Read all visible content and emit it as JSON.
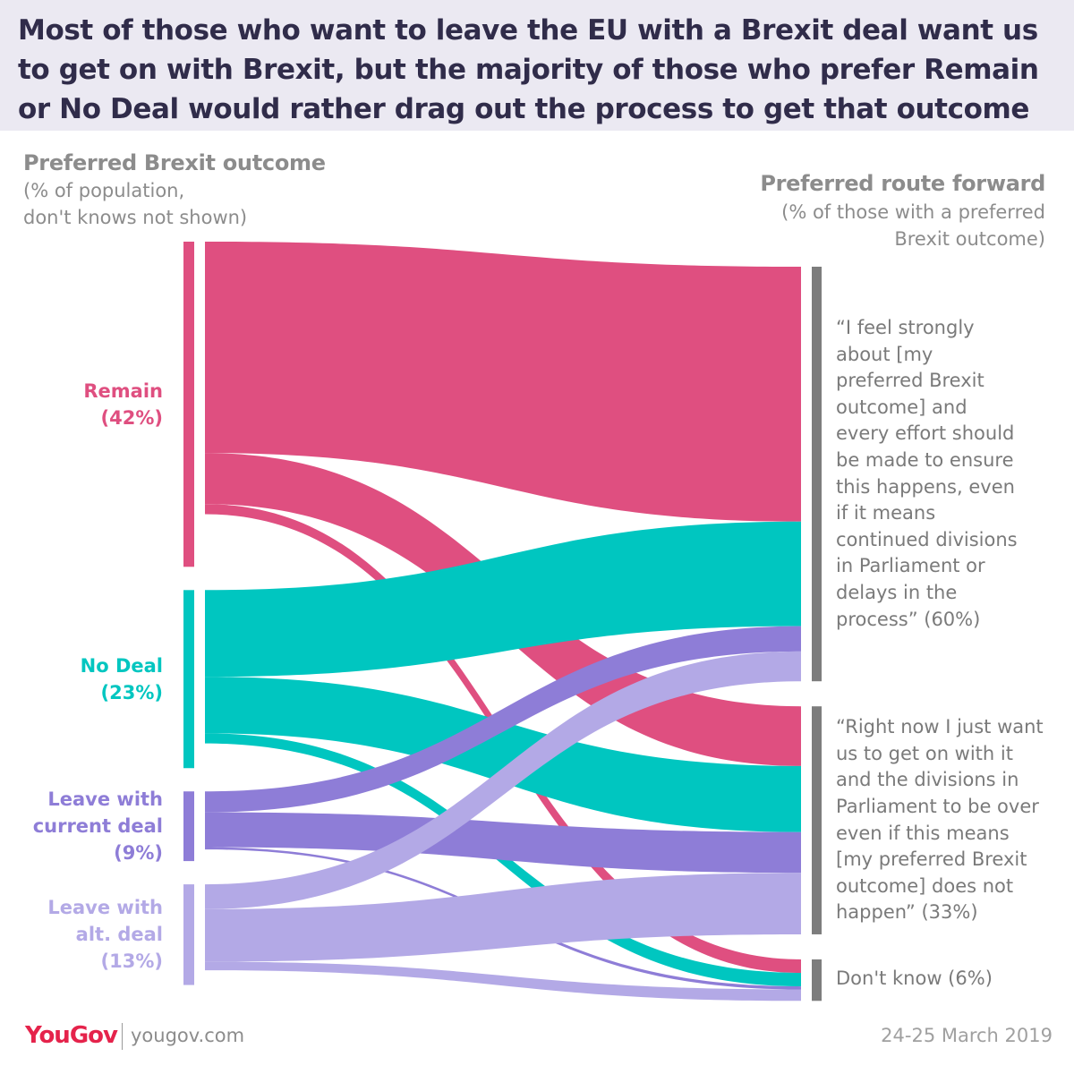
{
  "title": "Most of those who want to leave the EU with a Brexit deal want us to get on with Brexit, but the majority of those who prefer Remain or No Deal would rather drag out the process to get that outcome",
  "left_axis": {
    "heading": "Preferred Brexit outcome",
    "note_line1": "(% of population,",
    "note_line2": "don't knows not shown)"
  },
  "right_axis": {
    "heading": "Preferred route forward",
    "note_line1": "(% of those with a preferred",
    "note_line2": "Brexit outcome)"
  },
  "chart_data": {
    "type": "sankey",
    "sources": [
      {
        "id": "remain",
        "name_lines": [
          "Remain"
        ],
        "pct_label": "(42%)",
        "value": 42,
        "color": "#df4f80"
      },
      {
        "id": "nodeal",
        "name_lines": [
          "No Deal"
        ],
        "pct_label": "(23%)",
        "value": 23,
        "color": "#00c6c0"
      },
      {
        "id": "current",
        "name_lines": [
          "Leave with",
          "current deal"
        ],
        "pct_label": "(9%)",
        "value": 9,
        "color": "#8e7dd7"
      },
      {
        "id": "alt",
        "name_lines": [
          "Leave with",
          "alt. deal"
        ],
        "pct_label": "(13%)",
        "value": 13,
        "color": "#b3a9e6"
      }
    ],
    "targets": [
      {
        "id": "strong",
        "value": 60,
        "label_lines": [
          "“I feel strongly",
          "about [my",
          "preferred Brexit",
          "outcome] and",
          "every effort should",
          "be made to ensure",
          "this happens, even",
          "if it means",
          "continued divisions",
          "in Parliament or",
          "delays in the",
          "process” (60%)"
        ]
      },
      {
        "id": "getonwithit",
        "value": 33,
        "label_lines": [
          "“Right now I just want",
          "us to get on with it",
          "and the divisions in",
          "Parliament to be over",
          "even if this means",
          "[my preferred Brexit",
          "outcome] does not",
          "happen” (33%)"
        ]
      },
      {
        "id": "dontknow",
        "value": 6,
        "label_lines": [
          "Don't know (6%)"
        ]
      }
    ],
    "flows": [
      {
        "source": "remain",
        "target": "strong",
        "value": 27.3
      },
      {
        "source": "remain",
        "target": "getonwithit",
        "value": 6.6
      },
      {
        "source": "remain",
        "target": "dontknow",
        "value": 1.3
      },
      {
        "source": "nodeal",
        "target": "strong",
        "value": 11.2
      },
      {
        "source": "nodeal",
        "target": "getonwithit",
        "value": 7.3
      },
      {
        "source": "nodeal",
        "target": "dontknow",
        "value": 1.3
      },
      {
        "source": "current",
        "target": "strong",
        "value": 2.7
      },
      {
        "source": "current",
        "target": "getonwithit",
        "value": 4.5
      },
      {
        "source": "current",
        "target": "dontknow",
        "value": 0.3
      },
      {
        "source": "alt",
        "target": "strong",
        "value": 3.2
      },
      {
        "source": "alt",
        "target": "getonwithit",
        "value": 6.8
      },
      {
        "source": "alt",
        "target": "dontknow",
        "value": 1.1
      }
    ]
  },
  "footer": {
    "logo_text": "YouGov",
    "website": "yougov.com",
    "date": "24-25 March 2019"
  }
}
